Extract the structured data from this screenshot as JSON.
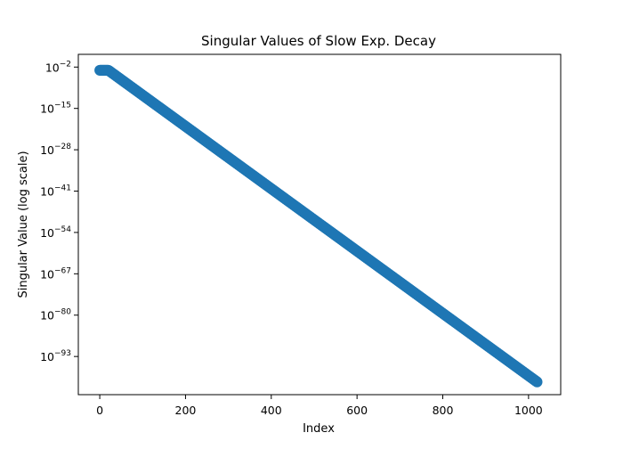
{
  "chart_data": {
    "type": "scatter",
    "title": "Singular Values of Slow Exp. Decay",
    "xlabel": "Index",
    "ylabel": "Singular Value (log scale)",
    "y_scale": "log",
    "grid": false,
    "xlim": [
      -50,
      1075
    ],
    "ylim": [
      1e-105,
      100.0
    ],
    "x_ticks": [
      0,
      200,
      400,
      600,
      800,
      1000
    ],
    "y_ticks": [
      {
        "value": 0.01,
        "base": "10",
        "exp": "−2"
      },
      {
        "value": 1e-15,
        "base": "10",
        "exp": "−15"
      },
      {
        "value": 1e-28,
        "base": "10",
        "exp": "−28"
      },
      {
        "value": 1e-41,
        "base": "10",
        "exp": "−41"
      },
      {
        "value": 1e-54,
        "base": "10",
        "exp": "−54"
      },
      {
        "value": 1e-67,
        "base": "10",
        "exp": "−67"
      },
      {
        "value": 1e-80,
        "base": "10",
        "exp": "−80"
      },
      {
        "value": 1e-93,
        "base": "10",
        "exp": "−93"
      }
    ],
    "series": [
      {
        "color": "#1f77b4",
        "points": [
          {
            "x": 0,
            "y": 0.001
          },
          {
            "x": 20,
            "y": 0.001
          },
          {
            "x": 1020,
            "y": 1e-101
          }
        ]
      }
    ]
  }
}
